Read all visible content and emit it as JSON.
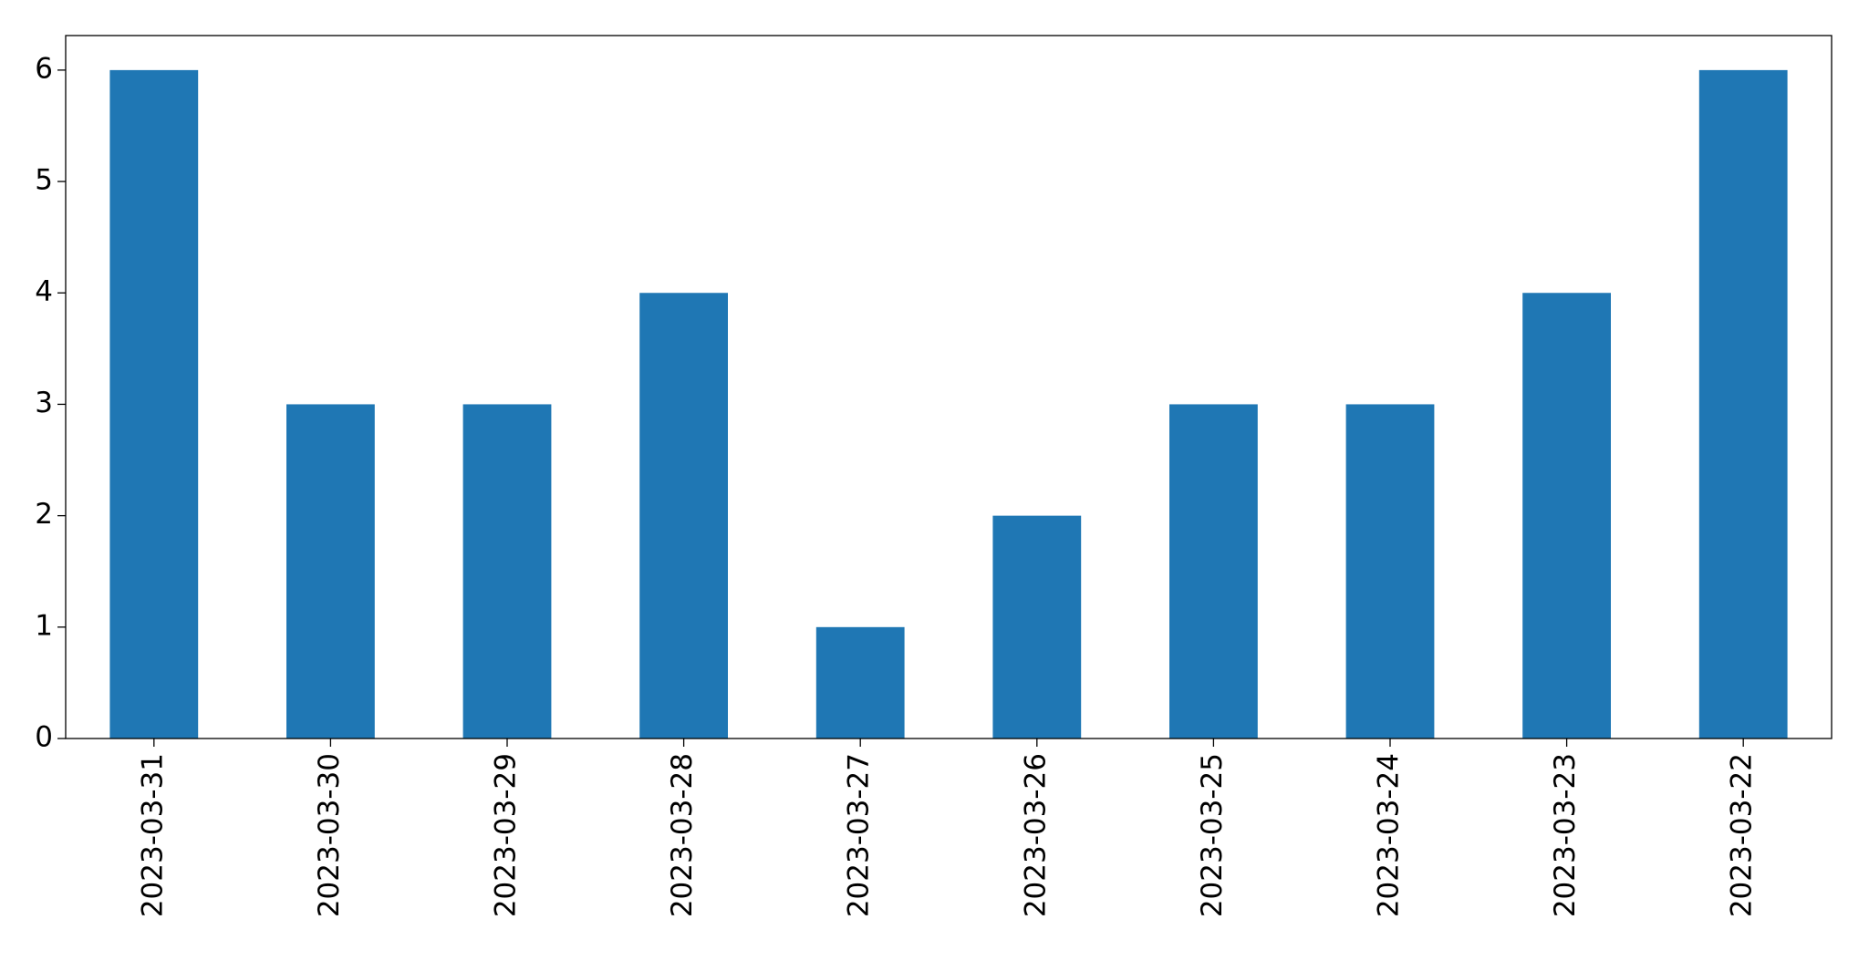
{
  "chart_data": {
    "type": "bar",
    "categories": [
      "2023-03-31",
      "2023-03-30",
      "2023-03-29",
      "2023-03-28",
      "2023-03-27",
      "2023-03-26",
      "2023-03-25",
      "2023-03-24",
      "2023-03-23",
      "2023-03-22"
    ],
    "values": [
      6,
      3,
      3,
      4,
      1,
      2,
      3,
      3,
      4,
      6
    ],
    "color": "#1f77b4",
    "ylim": [
      0,
      6.31
    ],
    "yticks": [
      0,
      1,
      2,
      3,
      4,
      5,
      6
    ],
    "grid": false
  }
}
